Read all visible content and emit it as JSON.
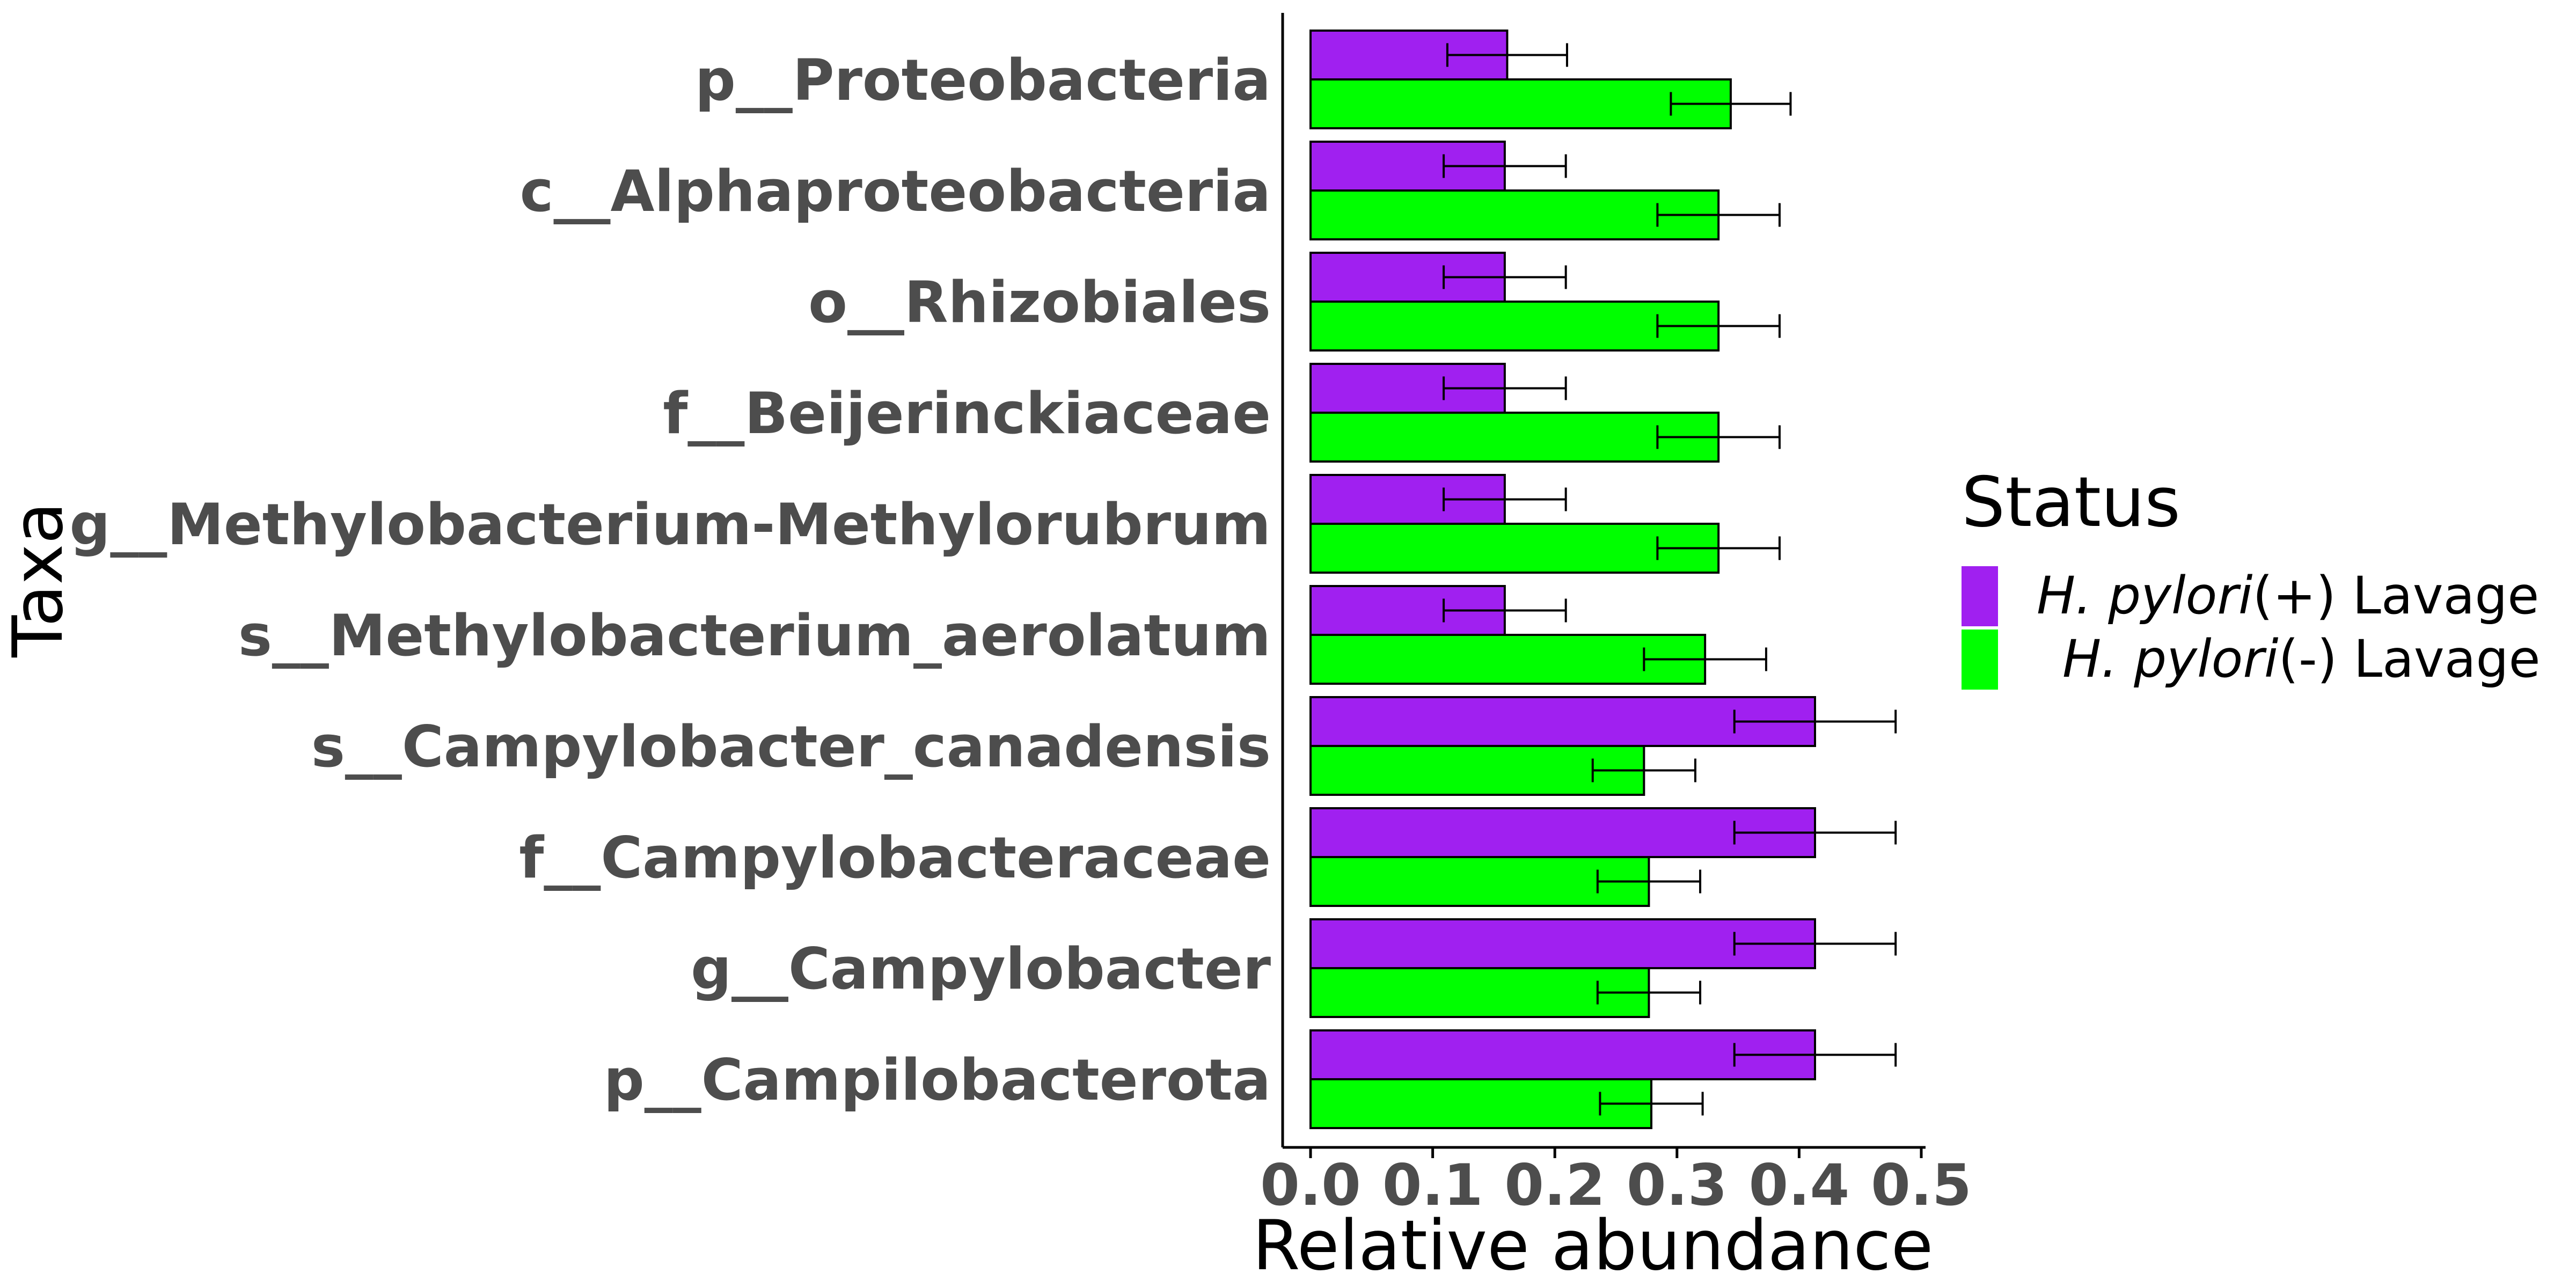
{
  "chart_data": {
    "type": "bar",
    "orientation": "horizontal",
    "categories": [
      "p__Proteobacteria",
      "c__Alphaproteobacteria",
      "o__Rhizobiales",
      "f__Beijerinckiaceae",
      "g__Methylobacterium-Methylorubrum",
      "s__Methylobacterium_aerolatum",
      "s__Campylobacter_canadensis",
      "f__Campylobacteraceae",
      "g__Campylobacter",
      "p__Campilobacterota"
    ],
    "series": [
      {
        "name": "(+) Lavage",
        "name_italic": "H. pylori",
        "color": "#a020f0",
        "values": [
          0.161,
          0.159,
          0.159,
          0.159,
          0.159,
          0.159,
          0.413,
          0.413,
          0.413,
          0.413
        ],
        "error": [
          0.049,
          0.05,
          0.05,
          0.05,
          0.05,
          0.05,
          0.066,
          0.066,
          0.066,
          0.066
        ]
      },
      {
        "name": "(-) Lavage",
        "name_italic": "H. pylori",
        "color": "#00ff00",
        "values": [
          0.344,
          0.334,
          0.334,
          0.334,
          0.334,
          0.323,
          0.273,
          0.277,
          0.277,
          0.279
        ],
        "error": [
          0.049,
          0.05,
          0.05,
          0.05,
          0.05,
          0.05,
          0.042,
          0.042,
          0.042,
          0.042
        ]
      }
    ],
    "xlabel": "Relative abundance",
    "ylabel": "Taxa",
    "xlim": [
      0,
      0.5
    ],
    "xticks": [
      "0.0",
      "0.1",
      "0.2",
      "0.3",
      "0.4",
      "0.5"
    ],
    "legend": {
      "title": "Status",
      "placement": "right"
    },
    "grid": false
  }
}
